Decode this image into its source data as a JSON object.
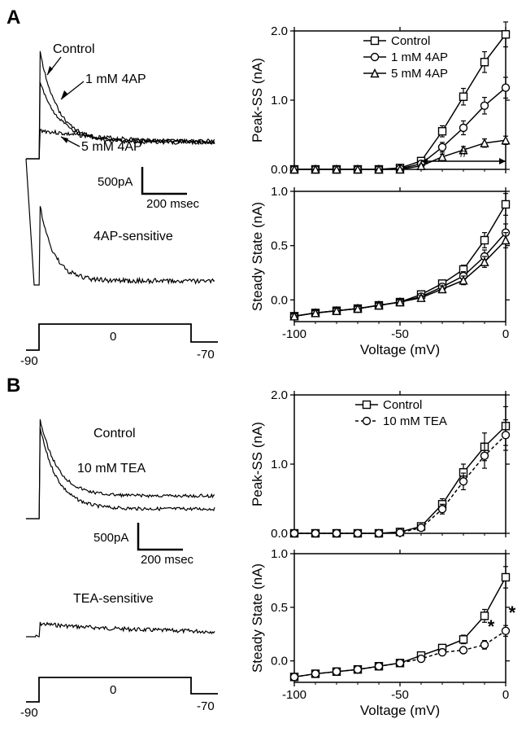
{
  "panelA": {
    "label": "A",
    "traces_top": {
      "labels": [
        "Control",
        "1 mM 4AP",
        "5 mM 4AP"
      ],
      "scalebar_current": "500pA",
      "scalebar_time": "200 msec"
    },
    "trace_bottom": {
      "label": "4AP-sensitive"
    },
    "protocol": {
      "v_hold": "-90",
      "v_step": "0",
      "v_return": "-70"
    },
    "chart_peak": {
      "ylabel": "Peak-SS (nA)",
      "ylim": [
        0,
        2.0
      ],
      "yticks": [
        0.0,
        1.0,
        2.0
      ],
      "ytick_labels": [
        "0.0",
        "1.0",
        "2.0"
      ],
      "xlim": [
        -100,
        0
      ],
      "series": [
        {
          "name": "Control",
          "marker": "square",
          "x": [
            -100,
            -90,
            -80,
            -70,
            -60,
            -50,
            -40,
            -30,
            -20,
            -10,
            0
          ],
          "y": [
            0,
            0,
            0,
            0,
            0,
            0.02,
            0.12,
            0.55,
            1.05,
            1.55,
            1.95
          ],
          "err": [
            0,
            0,
            0,
            0,
            0,
            0,
            0.03,
            0.08,
            0.12,
            0.15,
            0.18
          ]
        },
        {
          "name": "1 mM 4AP",
          "marker": "circle",
          "x": [
            -100,
            -90,
            -80,
            -70,
            -60,
            -50,
            -40,
            -30,
            -20,
            -10,
            0
          ],
          "y": [
            0,
            0,
            0,
            0,
            0,
            0.01,
            0.08,
            0.32,
            0.6,
            0.92,
            1.18
          ],
          "err": [
            0,
            0,
            0,
            0,
            0,
            0,
            0.02,
            0.07,
            0.1,
            0.12,
            0.15
          ]
        },
        {
          "name": "5 mM 4AP",
          "marker": "triangle",
          "x": [
            -100,
            -90,
            -80,
            -70,
            -60,
            -50,
            -40,
            -30,
            -20,
            -10,
            0
          ],
          "y": [
            0,
            0,
            0,
            0,
            0,
            0,
            0.05,
            0.18,
            0.28,
            0.38,
            0.42
          ],
          "err": [
            0,
            0,
            0,
            0,
            0,
            0,
            0.02,
            0.04,
            0.05,
            0.06,
            0.06
          ]
        }
      ],
      "sig_marker": "#",
      "sig_range_x": [
        -40,
        0
      ]
    },
    "chart_ss": {
      "ylabel": "Steady State (nA)",
      "ylim": [
        -0.2,
        1.0
      ],
      "yticks": [
        0.0,
        0.5,
        1.0
      ],
      "ytick_labels": [
        "0.0",
        "0.5",
        "1.0"
      ],
      "xlabel": "Voltage (mV)",
      "xlim": [
        -100,
        0
      ],
      "xticks": [
        -100,
        -50,
        0
      ],
      "xtick_labels": [
        "-100",
        "-50",
        "0"
      ],
      "series": [
        {
          "name": "Control",
          "marker": "square",
          "x": [
            -100,
            -90,
            -80,
            -70,
            -60,
            -50,
            -40,
            -30,
            -20,
            -10,
            0
          ],
          "y": [
            -0.15,
            -0.12,
            -0.1,
            -0.08,
            -0.05,
            -0.02,
            0.05,
            0.15,
            0.28,
            0.55,
            0.88
          ],
          "err": [
            0.02,
            0.02,
            0.02,
            0.02,
            0.02,
            0.02,
            0.02,
            0.03,
            0.04,
            0.07,
            0.1
          ]
        },
        {
          "name": "1 mM 4AP",
          "marker": "circle",
          "x": [
            -100,
            -90,
            -80,
            -70,
            -60,
            -50,
            -40,
            -30,
            -20,
            -10,
            0
          ],
          "y": [
            -0.15,
            -0.12,
            -0.1,
            -0.08,
            -0.05,
            -0.02,
            0.03,
            0.12,
            0.22,
            0.4,
            0.62
          ],
          "err": [
            0.02,
            0.02,
            0.02,
            0.02,
            0.02,
            0.02,
            0.02,
            0.03,
            0.04,
            0.06,
            0.08
          ]
        },
        {
          "name": "5 mM 4AP",
          "marker": "triangle",
          "x": [
            -100,
            -90,
            -80,
            -70,
            -60,
            -50,
            -40,
            -30,
            -20,
            -10,
            0
          ],
          "y": [
            -0.15,
            -0.12,
            -0.1,
            -0.08,
            -0.05,
            -0.02,
            0.02,
            0.1,
            0.18,
            0.35,
            0.55
          ],
          "err": [
            0.02,
            0.02,
            0.02,
            0.02,
            0.02,
            0.02,
            0.02,
            0.03,
            0.04,
            0.05,
            0.07
          ]
        }
      ]
    }
  },
  "panelB": {
    "label": "B",
    "traces_top": {
      "labels": [
        "Control",
        "10 mM TEA"
      ],
      "scalebar_current": "500pA",
      "scalebar_time": "200 msec"
    },
    "trace_bottom": {
      "label": "TEA-sensitive"
    },
    "protocol": {
      "v_hold": "-90",
      "v_step": "0",
      "v_return": "-70"
    },
    "chart_peak": {
      "ylabel": "Peak-SS (nA)",
      "ylim": [
        0,
        2.0
      ],
      "yticks": [
        0.0,
        1.0,
        2.0
      ],
      "ytick_labels": [
        "0.0",
        "1.0",
        "2.0"
      ],
      "xlim": [
        -100,
        0
      ],
      "series": [
        {
          "name": "Control",
          "marker": "square",
          "style": "solid",
          "x": [
            -100,
            -90,
            -80,
            -70,
            -60,
            -50,
            -40,
            -30,
            -20,
            -10,
            0
          ],
          "y": [
            0,
            0,
            0,
            0,
            0,
            0.02,
            0.1,
            0.42,
            0.88,
            1.25,
            1.55
          ],
          "err": [
            0,
            0,
            0,
            0,
            0,
            0,
            0.03,
            0.08,
            0.12,
            0.2,
            0.28
          ]
        },
        {
          "name": "10 mM TEA",
          "marker": "circle",
          "style": "dashed",
          "x": [
            -100,
            -90,
            -80,
            -70,
            -60,
            -50,
            -40,
            -30,
            -20,
            -10,
            0
          ],
          "y": [
            0,
            0,
            0,
            0,
            0,
            0.01,
            0.08,
            0.35,
            0.75,
            1.12,
            1.42
          ],
          "err": [
            0,
            0,
            0,
            0,
            0,
            0,
            0.03,
            0.07,
            0.12,
            0.18,
            0.22
          ]
        }
      ]
    },
    "chart_ss": {
      "ylabel": "Steady State (nA)",
      "ylim": [
        -0.2,
        1.0
      ],
      "yticks": [
        0.0,
        0.5,
        1.0
      ],
      "ytick_labels": [
        "0.0",
        "0.5",
        "1.0"
      ],
      "xlabel": "Voltage (mV)",
      "xlim": [
        -100,
        0
      ],
      "xticks": [
        -100,
        -50,
        0
      ],
      "xtick_labels": [
        "-100",
        "-50",
        "0"
      ],
      "series": [
        {
          "name": "Control",
          "marker": "square",
          "style": "solid",
          "x": [
            -100,
            -90,
            -80,
            -70,
            -60,
            -50,
            -40,
            -30,
            -20,
            -10,
            0
          ],
          "y": [
            -0.15,
            -0.12,
            -0.1,
            -0.08,
            -0.05,
            -0.02,
            0.05,
            0.12,
            0.2,
            0.42,
            0.78
          ],
          "err": [
            0.02,
            0.02,
            0.02,
            0.02,
            0.02,
            0.02,
            0.02,
            0.03,
            0.04,
            0.06,
            0.1
          ]
        },
        {
          "name": "10 mM TEA",
          "marker": "circle",
          "style": "dashed",
          "x": [
            -100,
            -90,
            -80,
            -70,
            -60,
            -50,
            -40,
            -30,
            -20,
            -10,
            0
          ],
          "y": [
            -0.15,
            -0.12,
            -0.1,
            -0.08,
            -0.05,
            -0.02,
            0.02,
            0.08,
            0.1,
            0.15,
            0.28
          ],
          "err": [
            0.02,
            0.02,
            0.02,
            0.02,
            0.02,
            0.02,
            0.02,
            0.03,
            0.03,
            0.04,
            0.05
          ]
        }
      ],
      "sig_markers": [
        {
          "x": -10,
          "label": "*"
        },
        {
          "x": 0,
          "label": "*"
        }
      ]
    }
  },
  "colors": {
    "line": "#000000",
    "bg": "#ffffff",
    "marker_fill": "#ffffff"
  }
}
